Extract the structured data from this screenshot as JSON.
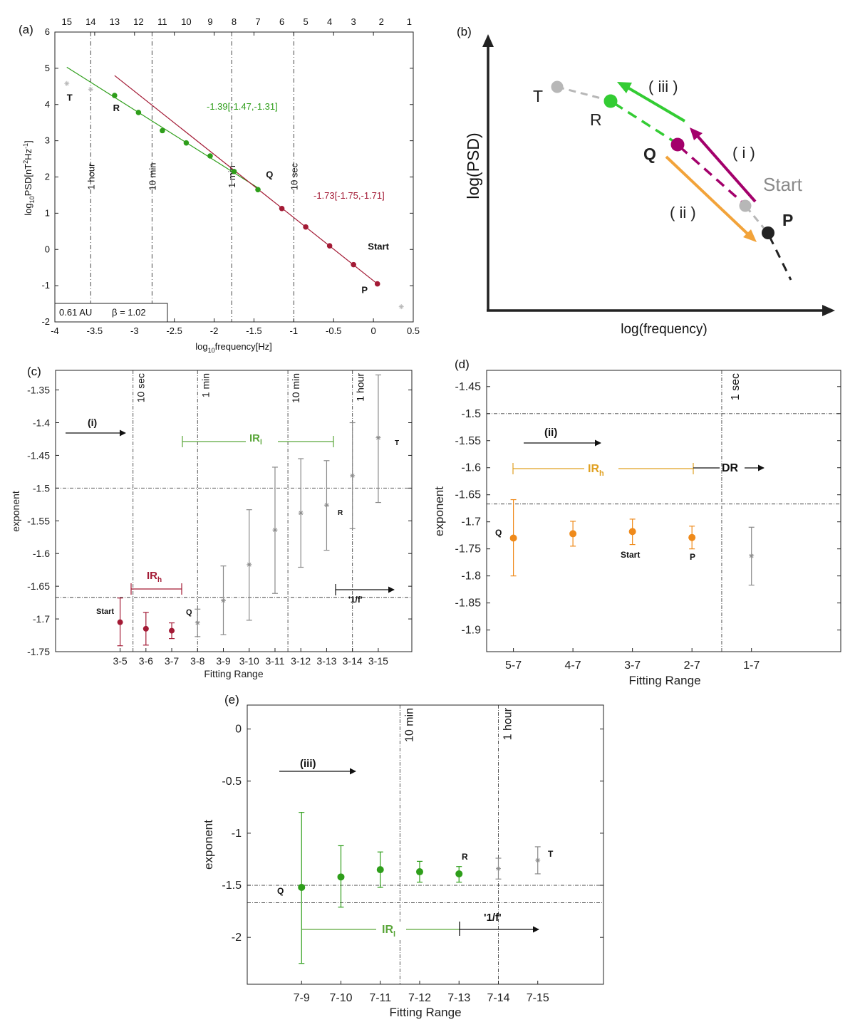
{
  "colors": {
    "green": "#2e9e1a",
    "darkred": "#a31a35",
    "orange": "#ef8a1a",
    "gray": "#8a8a8a",
    "lightgray": "#b7b7b7",
    "purple": "#a3006b",
    "black": "#111111",
    "diagGreen": "#33cc33",
    "diagOrange": "#f2a33a"
  },
  "panel_a": {
    "label": "(a)",
    "top_ticks": [
      "15",
      "14",
      "13",
      "12",
      "11",
      "10",
      "9",
      "8",
      "7",
      "6",
      "5",
      "4",
      "3",
      "2",
      "1"
    ],
    "top_tick_x": [
      -3.85,
      -3.55,
      -3.25,
      -2.95,
      -2.65,
      -2.35,
      -2.05,
      -1.75,
      -1.45,
      -1.15,
      -0.85,
      -0.55,
      -0.25,
      0.1,
      0.45
    ],
    "xlabel_pre": "log",
    "xlabel_sub": "10",
    "xlabel_post": "frequency[Hz]",
    "ylabel_pre": "log",
    "ylabel_sub": "10",
    "ylabel_mid": "PSD[nT",
    "ylabel_sup1": "2",
    "ylabel_mid2": "Hz",
    "ylabel_sup2": "-1",
    "ylabel_end": "]",
    "xlim": [
      -4,
      0.5
    ],
    "ylim": [
      -2,
      6
    ],
    "xticks": [
      -4,
      -3.5,
      -3,
      -2.5,
      -2,
      -1.5,
      -1,
      -0.5,
      0,
      0.5
    ],
    "xtick_labels": [
      "-4",
      "-3.5",
      "-3",
      "-2.5",
      "-2",
      "-1.5",
      "-1",
      "-0.5",
      "0",
      "0.5"
    ],
    "yticks": [
      -2,
      -1,
      0,
      1,
      2,
      3,
      4,
      5,
      6
    ],
    "ytick_labels": [
      "-2",
      "-1",
      "0",
      "1",
      "2",
      "3",
      "4",
      "5",
      "6"
    ],
    "vlines": [
      {
        "x": -3.55,
        "label": "1 hour"
      },
      {
        "x": -2.78,
        "label": "10 min"
      },
      {
        "x": -1.78,
        "label": "1 min"
      },
      {
        "x": -1.0,
        "label": "10 sec"
      }
    ],
    "green_points": {
      "x": [
        -3.25,
        -2.95,
        -2.65,
        -2.35,
        -2.05,
        -1.75,
        -1.45
      ],
      "y": [
        4.25,
        3.78,
        3.28,
        2.94,
        2.58,
        2.15,
        1.65
      ]
    },
    "red_points": {
      "x": [
        -1.15,
        -0.85,
        -0.55,
        -0.25,
        0.05
      ],
      "y": [
        1.13,
        0.62,
        0.1,
        -0.42,
        -0.95
      ]
    },
    "gray_points": {
      "x": [
        -3.85,
        -3.55,
        0.35
      ],
      "y": [
        4.58,
        4.42,
        -1.58
      ]
    },
    "green_fit": {
      "x": [
        -3.85,
        -1.45
      ],
      "y": [
        5.03,
        1.7
      ]
    },
    "red_fit": {
      "x": [
        -3.25,
        0.05
      ],
      "y": [
        4.8,
        -0.95
      ]
    },
    "green_fit_label": "-1.39[-1.47,-1.31]",
    "red_fit_label": "-1.73[-1.75,-1.71]",
    "point_labels": [
      {
        "text": "T",
        "x": -3.85,
        "y": 4.1
      },
      {
        "text": "R",
        "x": -3.27,
        "y": 3.82
      },
      {
        "text": "Q",
        "x": -1.35,
        "y": 1.98
      },
      {
        "text": "Start",
        "x": -0.07,
        "y": 0.0
      },
      {
        "text": "P",
        "x": -0.15,
        "y": -1.2
      }
    ],
    "legend_au": "0.61 AU",
    "legend_beta": "β = 1.02"
  },
  "panel_b": {
    "label": "(b)",
    "ylabel": "log(PSD)",
    "xlabel": "log(frequency)",
    "point_labels": {
      "T": "T",
      "R": "R",
      "Q": "Q",
      "P": "P",
      "Start": "Start"
    },
    "arrow_labels": {
      "i": "( i )",
      "ii": "( ii )",
      "iii": "( iii )"
    }
  },
  "panel_c": {
    "label": "(c)",
    "xlabel": "Fitting Range",
    "ylabel": "exponent",
    "categories": [
      "3-5",
      "3-6",
      "3-7",
      "3-8",
      "3-9",
      "3-10",
      "3-11",
      "3-12",
      "3-13",
      "3-14",
      "3-15"
    ],
    "ylim": [
      -1.75,
      -1.32
    ],
    "yticks": [
      -1.75,
      -1.7,
      -1.65,
      -1.6,
      -1.55,
      -1.5,
      -1.45,
      -1.4,
      -1.35
    ],
    "ytick_labels": [
      "-1.75",
      "-1.7",
      "-1.65",
      "-1.6",
      "-1.55",
      "-1.5",
      "-1.45",
      "-1.4",
      "-1.35"
    ],
    "hlines": [
      -1.5,
      -1.667
    ],
    "vlines": [
      {
        "x": 3.5,
        "label": "10 sec"
      },
      {
        "x": 6.0,
        "label": "1 min"
      },
      {
        "x": 9.5,
        "label": "10 min"
      },
      {
        "x": 12.0,
        "label": "1 hour"
      }
    ],
    "red_series": {
      "x": [
        3,
        4,
        5
      ],
      "y": [
        -1.705,
        -1.715,
        -1.718
      ],
      "lo": [
        -1.741,
        -1.74,
        -1.73
      ],
      "hi": [
        -1.668,
        -1.69,
        -1.706
      ]
    },
    "gray_series": {
      "x": [
        6,
        7,
        8,
        9,
        10,
        11,
        12,
        13
      ],
      "y": [
        -1.706,
        -1.672,
        -1.617,
        -1.564,
        -1.538,
        -1.526,
        -1.481,
        -1.423
      ],
      "lo": [
        -1.727,
        -1.724,
        -1.702,
        -1.661,
        -1.621,
        -1.595,
        -1.562,
        -1.522
      ],
      "hi": [
        -1.685,
        -1.619,
        -1.533,
        -1.468,
        -1.455,
        -1.458,
        -1.4,
        -1.327
      ]
    },
    "labels": {
      "start": "Start",
      "q": "Q",
      "r": "R",
      "t": "T",
      "i": "(i)",
      "irl_main": "IR",
      "irl_sub": "l",
      "irh_main": "IR",
      "irh_sub": "h",
      "onef": "'1/f'"
    }
  },
  "panel_d": {
    "label": "(d)",
    "xlabel": "Fitting Range",
    "ylabel": "exponent",
    "categories": [
      "5-7",
      "4-7",
      "3-7",
      "2-7",
      "1-7"
    ],
    "ylim": [
      -1.94,
      -1.42
    ],
    "yticks": [
      -1.9,
      -1.85,
      -1.8,
      -1.75,
      -1.7,
      -1.65,
      -1.6,
      -1.55,
      -1.5,
      -1.45
    ],
    "ytick_labels": [
      "-1.9",
      "-1.85",
      "-1.8",
      "-1.75",
      "-1.7",
      "-1.65",
      "-1.6",
      "-1.55",
      "-1.5",
      "-1.45"
    ],
    "hlines": [
      -1.5,
      -1.667
    ],
    "vlines": [
      {
        "x": 4.5,
        "label": "1 sec"
      }
    ],
    "orange_series": {
      "x": [
        1,
        2,
        3,
        4
      ],
      "y": [
        -1.73,
        -1.722,
        -1.718,
        -1.729
      ],
      "lo": [
        -1.8,
        -1.745,
        -1.742,
        -1.75
      ],
      "hi": [
        -1.659,
        -1.699,
        -1.695,
        -1.708
      ]
    },
    "gray_series": {
      "x": [
        5
      ],
      "y": [
        -1.763
      ],
      "lo": [
        -1.817
      ],
      "hi": [
        -1.71
      ]
    },
    "labels": {
      "q": "Q",
      "start": "Start",
      "p": "P",
      "ii": "(ii)",
      "irh_main": "IR",
      "irh_sub": "h",
      "dr": "DR"
    }
  },
  "panel_e": {
    "label": "(e)",
    "xlabel": "Fitting Range",
    "ylabel": "exponent",
    "categories": [
      "7-9",
      "7-10",
      "7-11",
      "7-12",
      "7-13",
      "7-14",
      "7-15"
    ],
    "ylim": [
      -2.45,
      0.23
    ],
    "yticks": [
      -2,
      -1.5,
      -1,
      -0.5,
      0
    ],
    "ytick_labels": [
      "-2",
      "-1.5",
      "-1",
      "-0.5",
      "0"
    ],
    "hlines": [
      -1.5,
      -1.667
    ],
    "vlines": [
      {
        "x": 3.5,
        "label": "10 min"
      },
      {
        "x": 6.0,
        "label": "1 hour"
      }
    ],
    "green_series": {
      "x": [
        1,
        2,
        3,
        4,
        5
      ],
      "y": [
        -1.52,
        -1.42,
        -1.35,
        -1.37,
        -1.39
      ],
      "lo": [
        -2.25,
        -1.71,
        -1.52,
        -1.47,
        -1.47
      ],
      "hi": [
        -0.8,
        -1.12,
        -1.18,
        -1.27,
        -1.32
      ]
    },
    "gray_series": {
      "x": [
        6,
        7
      ],
      "y": [
        -1.34,
        -1.26
      ],
      "lo": [
        -1.44,
        -1.39
      ],
      "hi": [
        -1.24,
        -1.13
      ]
    },
    "labels": {
      "q": "Q",
      "r": "R",
      "t": "T",
      "iii": "(iii)",
      "irl_main": "IR",
      "irl_sub": "l",
      "onef": "'1/f'"
    }
  }
}
